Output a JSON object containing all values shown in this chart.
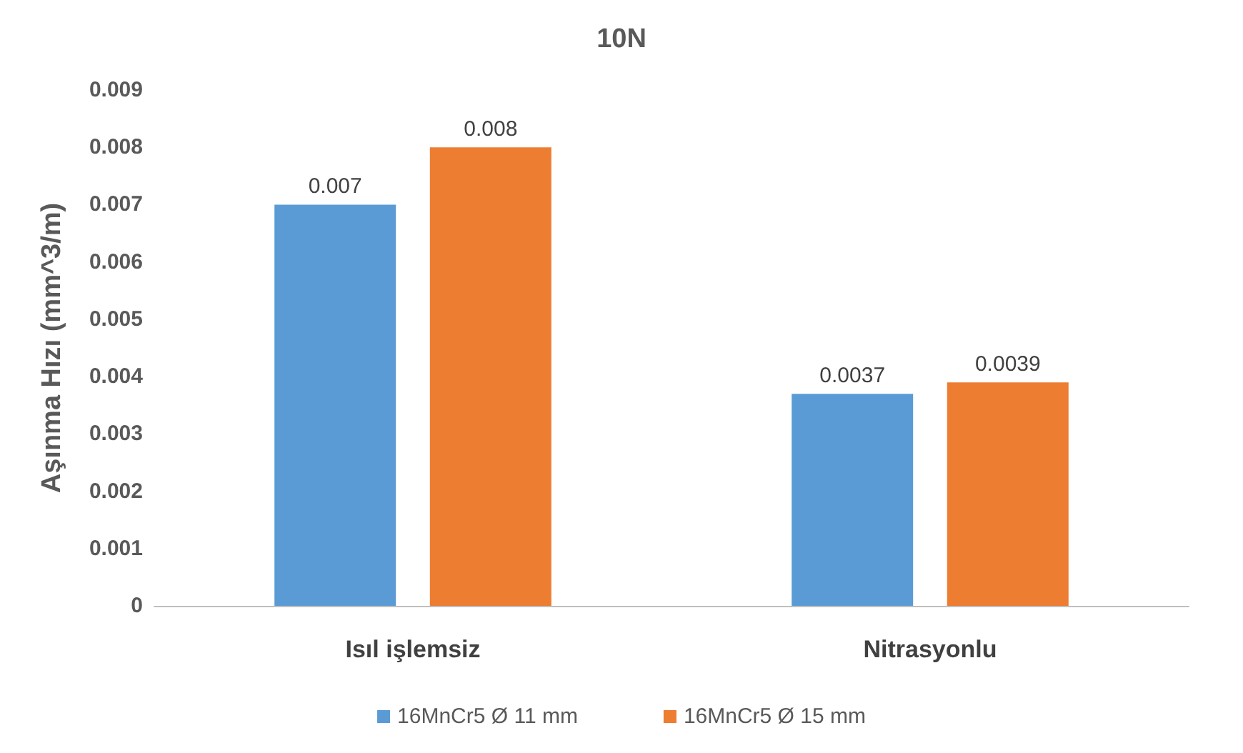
{
  "chart_data": {
    "type": "bar",
    "title": "10N",
    "ylabel": "Aşınma Hızı (mm^3/m)",
    "categories": [
      "Isıl işlemsiz",
      "Nitrasyonlu"
    ],
    "series": [
      {
        "name": "16MnCr5 Ø 11 mm",
        "color": "#5b9bd5",
        "values": [
          0.007,
          0.0037
        ]
      },
      {
        "name": "16MnCr5 Ø 15 mm",
        "color": "#ed7d31",
        "values": [
          0.008,
          0.0039
        ]
      }
    ],
    "ylim": [
      0,
      0.009
    ],
    "yticks": [
      0,
      0.001,
      0.002,
      0.003,
      0.004,
      0.005,
      0.006,
      0.007,
      0.008,
      0.009
    ],
    "data_labels": true,
    "legend": "bottom"
  }
}
